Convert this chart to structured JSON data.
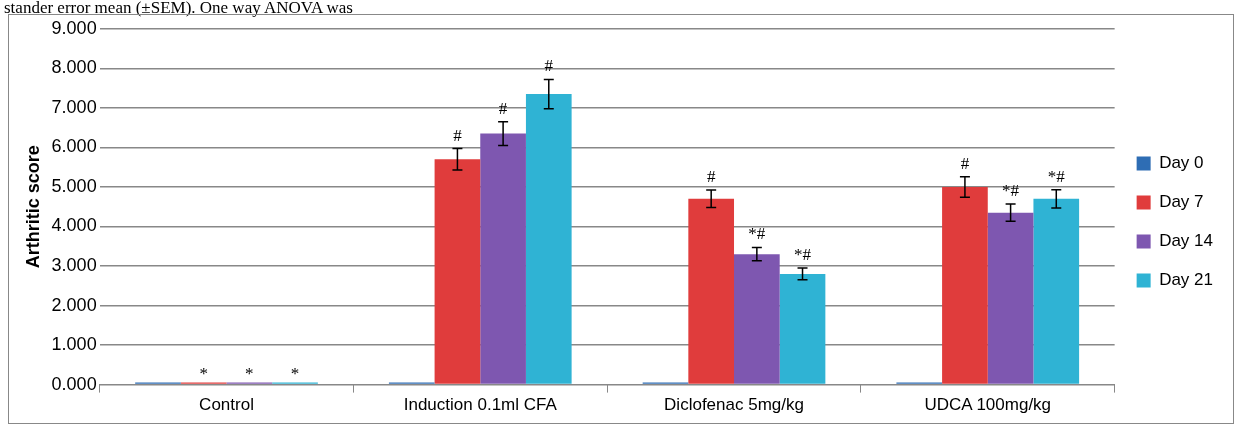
{
  "chart_data": {
    "type": "bar",
    "ylabel": "Arthritic score",
    "categories": [
      "Control",
      "Induction 0.1ml CFA",
      "Diclofenac 5mg/kg",
      "UDCA 100mg/kg"
    ],
    "series": [
      {
        "name": "Day 0",
        "color": "#2e6db4",
        "values": [
          0,
          0,
          0,
          0
        ]
      },
      {
        "name": "Day 7",
        "color": "#e03c3c",
        "values": [
          0,
          5.7,
          4.7,
          5.0
        ],
        "errors": [
          null,
          0.27,
          0.22,
          0.26
        ],
        "value_labels": [
          "*",
          "#",
          "#",
          "#"
        ]
      },
      {
        "name": "Day 14",
        "color": "#7e57b0",
        "values": [
          0,
          6.35,
          3.3,
          4.35
        ],
        "errors": [
          null,
          0.3,
          0.17,
          0.22
        ],
        "value_labels": [
          "*",
          "#",
          "*#",
          "*#"
        ]
      },
      {
        "name": "Day 21",
        "color": "#2fb3d4",
        "values": [
          0,
          7.35,
          2.8,
          4.7
        ],
        "errors": [
          null,
          0.37,
          0.15,
          0.23
        ],
        "value_labels": [
          "*",
          "#",
          "*#",
          "*#"
        ]
      }
    ],
    "ylim": [
      0,
      9
    ],
    "yticks": [
      {
        "value": 0,
        "label": "0.000"
      },
      {
        "value": 1,
        "label": "1.000"
      },
      {
        "value": 2,
        "label": "2.000"
      },
      {
        "value": 3,
        "label": "3.000"
      },
      {
        "value": 4,
        "label": "4.000"
      },
      {
        "value": 5,
        "label": "5.000"
      },
      {
        "value": 6,
        "label": "6.000"
      },
      {
        "value": 7,
        "label": "7.000"
      },
      {
        "value": 8,
        "label": "8.000"
      },
      {
        "value": 9,
        "label": "9.000"
      }
    ],
    "grid": "y",
    "legend": "right",
    "annotations": [
      "stander error mean (±SEM). One way ANOVA was"
    ]
  }
}
